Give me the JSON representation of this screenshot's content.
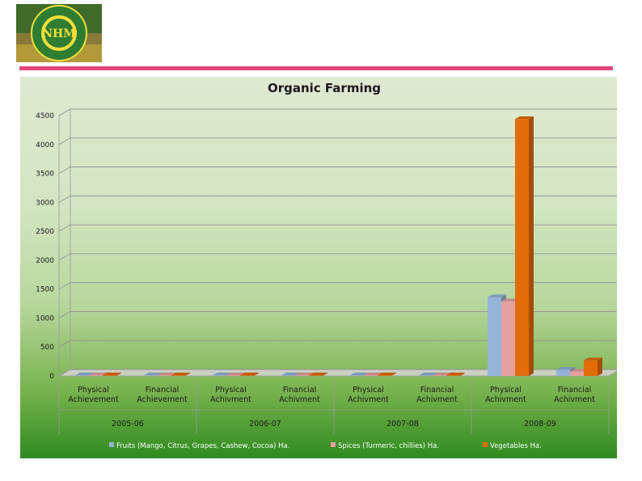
{
  "colors": {
    "fruits": "#95b3d7",
    "spices": "#e6a0a0",
    "vegetables": "#e36c0a",
    "rule": "#e2477a"
  },
  "logo": {
    "text": "NHM",
    "ring_text": "राष्ट्रीय बागवानी मिशन · NATIONAL HORTICULTURE MISSION"
  },
  "chart_data": {
    "type": "bar",
    "title": "Organic Farming",
    "ylim": [
      0,
      4500
    ],
    "yticks": [
      0,
      500,
      1000,
      1500,
      2000,
      2500,
      3000,
      3500,
      4000,
      4500
    ],
    "grid": true,
    "legend_position": "bottom",
    "groups": [
      {
        "label": "2005-06",
        "categories": [
          [
            "Physical",
            "Achievement"
          ],
          [
            "Financial",
            "Achievement"
          ]
        ]
      },
      {
        "label": "2006-07",
        "categories": [
          [
            "Physical",
            "Achivment"
          ],
          [
            "Financial",
            "Achivment"
          ]
        ]
      },
      {
        "label": "2007-08",
        "categories": [
          [
            "Physical",
            "Achivment"
          ],
          [
            "Financial",
            "Achivment"
          ]
        ]
      },
      {
        "label": "2008-09",
        "categories": [
          [
            "Physical",
            "Achivment"
          ],
          [
            "Financial",
            "Achivment"
          ]
        ]
      }
    ],
    "series": [
      {
        "name": "Fruits (Mango, Citrus, Grapes, Cashew, Cocoa) Ha.",
        "color_key": "fruits",
        "values": [
          0,
          0,
          0,
          0,
          0,
          0,
          1360,
          105
        ]
      },
      {
        "name": "Spices (Turmeric, chillies) Ha.",
        "color_key": "spices",
        "values": [
          0,
          0,
          0,
          0,
          0,
          0,
          1290,
          75
        ]
      },
      {
        "name": "Vegetables Ha.",
        "color_key": "vegetables",
        "values": [
          0,
          0,
          0,
          0,
          0,
          0,
          4440,
          270
        ]
      }
    ]
  }
}
